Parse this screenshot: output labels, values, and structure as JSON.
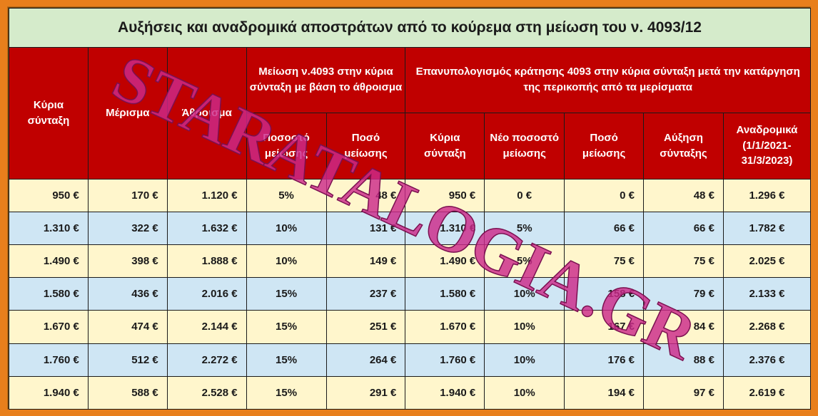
{
  "title": "Αυξήσεις και αναδρομικά αποστράτων από το κούρεμα στη μείωση του ν. 4093/12",
  "headers": {
    "main_pension": "Κύρια σύνταξη",
    "dividend": "Μέρισμα",
    "sum": "Άθροισμα",
    "group_a": "Μείωση ν.4093 στην κύρια σύνταξη με βάση το άθροισμα",
    "group_b": "Επανυπολογισμός κράτησης 4093 στην κύρια σύνταξη μετά την κατάργηση της περικοπής από τα μερίσματα",
    "pct_reduction": "Ποσοστό μείωσης",
    "amount_reduction": "Ποσό μείωσης",
    "main_pension_b": "Κύρια σύνταξη",
    "new_pct": "Νέο ποσοστό μείωσης",
    "amount_reduction_b": "Ποσό μείωσης",
    "increase": "Αύξηση σύνταξης",
    "retroactive": "Αναδρομικά (1/1/2021-31/3/2023)"
  },
  "rows": [
    [
      "950 €",
      "170 €",
      "1.120 €",
      "5%",
      "48 €",
      "950 €",
      "0 €",
      "0 €",
      "48 €",
      "1.296 €"
    ],
    [
      "1.310 €",
      "322 €",
      "1.632 €",
      "10%",
      "131 €",
      "1.310 €",
      "5%",
      "66 €",
      "66 €",
      "1.782 €"
    ],
    [
      "1.490 €",
      "398 €",
      "1.888 €",
      "10%",
      "149 €",
      "1.490 €",
      "5%",
      "75 €",
      "75 €",
      "2.025 €"
    ],
    [
      "1.580 €",
      "436 €",
      "2.016 €",
      "15%",
      "237 €",
      "1.580 €",
      "10%",
      "158 €",
      "79 €",
      "2.133 €"
    ],
    [
      "1.670 €",
      "474 €",
      "2.144 €",
      "15%",
      "251 €",
      "1.670 €",
      "10%",
      "167 €",
      "84 €",
      "2.268 €"
    ],
    [
      "1.760 €",
      "512 €",
      "2.272 €",
      "15%",
      "264 €",
      "1.760 €",
      "10%",
      "176 €",
      "88 €",
      "2.376 €"
    ],
    [
      "1.940 €",
      "588 €",
      "2.528 €",
      "15%",
      "291 €",
      "1.940 €",
      "10%",
      "194 €",
      "97 €",
      "2.619 €"
    ]
  ],
  "watermark": {
    "text": "STARATALOGIA.GR",
    "color": "#cc2a8a"
  },
  "colors": {
    "frame": "#e87f1c",
    "title_bg": "#d5ebcb",
    "header_bg": "#c00000",
    "row_yellow": "#fff6cc",
    "row_blue": "#cfe6f4"
  }
}
